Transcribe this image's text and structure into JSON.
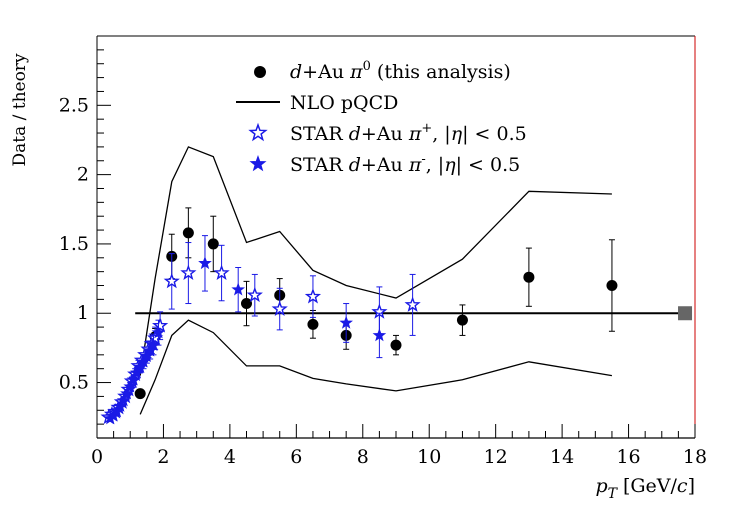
{
  "chart_data": {
    "type": "scatter",
    "title": "",
    "xlabel": "p_T [GeV/c]",
    "xlabel_main": "p",
    "xlabel_sub": "T",
    "xlabel_unit": "[GeV/",
    "xlabel_unit_var": "c",
    "xlabel_unit_close": "]",
    "ylabel": "Data / theory",
    "xlim": [
      0,
      18
    ],
    "ylim": [
      0.1,
      3.0
    ],
    "xticks": [
      "0",
      "2",
      "4",
      "6",
      "8",
      "10",
      "12",
      "14",
      "16",
      "18"
    ],
    "yticks": [
      "0.5",
      "1",
      "1.5",
      "2",
      "2.5"
    ],
    "legend": {
      "placement": "top-right",
      "entries": [
        {
          "marker": "circle",
          "label": "d+Au π0 (this analysis)",
          "parts": [
            "d",
            "+Au ",
            "π",
            "0",
            " (this analysis)"
          ]
        },
        {
          "marker": "line",
          "label": "NLO pQCD"
        },
        {
          "marker": "open-star",
          "label": "STAR d+Au π+, |η| < 0.5",
          "parts": [
            "STAR ",
            "d",
            "+Au ",
            "π",
            "+",
            ", |",
            "η",
            "| < 0.5"
          ]
        },
        {
          "marker": "filled-star",
          "label": "STAR d+Au π-, |η| < 0.5",
          "parts": [
            "STAR ",
            "d",
            "+Au ",
            "π",
            "-",
            ", |",
            "η",
            "| < 0.5"
          ]
        }
      ]
    },
    "reference_line": {
      "y": 1.0,
      "x_start": 1.15,
      "x_end": 17.7
    },
    "reference_box_color": "#666666",
    "series": [
      {
        "name": "d+Au pi0 (this analysis)",
        "marker": "circle",
        "color": "#000000",
        "points": [
          {
            "x": 1.3,
            "y": 0.42,
            "err": 0.02
          },
          {
            "x": 1.75,
            "y": 0.83,
            "err": 0.06
          },
          {
            "x": 2.25,
            "y": 1.41,
            "err": 0.16
          },
          {
            "x": 2.75,
            "y": 1.58,
            "err": 0.18
          },
          {
            "x": 3.5,
            "y": 1.5,
            "err": 0.2
          },
          {
            "x": 4.5,
            "y": 1.07,
            "err": 0.16
          },
          {
            "x": 5.5,
            "y": 1.13,
            "err": 0.12
          },
          {
            "x": 6.5,
            "y": 0.92,
            "err": 0.1
          },
          {
            "x": 7.5,
            "y": 0.84,
            "err": 0.1
          },
          {
            "x": 9.0,
            "y": 0.77,
            "err": 0.07
          },
          {
            "x": 11.0,
            "y": 0.95,
            "err": 0.11
          },
          {
            "x": 13.0,
            "y": 1.26,
            "err": 0.21
          },
          {
            "x": 15.5,
            "y": 1.2,
            "err": 0.33
          }
        ]
      },
      {
        "name": "STAR d+Au pi+",
        "marker": "open-star",
        "color": "#1a1ae6",
        "points": [
          {
            "x": 0.35,
            "y": 0.25,
            "err": 0.02
          },
          {
            "x": 0.45,
            "y": 0.27,
            "err": 0.02
          },
          {
            "x": 0.55,
            "y": 0.29,
            "err": 0.02
          },
          {
            "x": 0.65,
            "y": 0.32,
            "err": 0.02
          },
          {
            "x": 0.75,
            "y": 0.36,
            "err": 0.02
          },
          {
            "x": 0.85,
            "y": 0.4,
            "err": 0.03
          },
          {
            "x": 0.95,
            "y": 0.45,
            "err": 0.03
          },
          {
            "x": 1.05,
            "y": 0.51,
            "err": 0.03
          },
          {
            "x": 1.15,
            "y": 0.56,
            "err": 0.04
          },
          {
            "x": 1.25,
            "y": 0.62,
            "err": 0.04
          },
          {
            "x": 1.35,
            "y": 0.66,
            "err": 0.05
          },
          {
            "x": 1.45,
            "y": 0.7,
            "err": 0.05
          },
          {
            "x": 1.55,
            "y": 0.74,
            "err": 0.06
          },
          {
            "x": 1.65,
            "y": 0.78,
            "err": 0.07
          },
          {
            "x": 1.75,
            "y": 0.82,
            "err": 0.08
          },
          {
            "x": 1.9,
            "y": 0.91,
            "err": 0.1
          },
          {
            "x": 2.25,
            "y": 1.23,
            "err": 0.2
          },
          {
            "x": 2.75,
            "y": 1.29,
            "err": 0.22
          },
          {
            "x": 3.75,
            "y": 1.29,
            "err": 0.2
          },
          {
            "x": 4.75,
            "y": 1.13,
            "err": 0.15
          },
          {
            "x": 5.5,
            "y": 1.03,
            "err": 0.15
          },
          {
            "x": 6.5,
            "y": 1.12,
            "err": 0.15
          },
          {
            "x": 8.5,
            "y": 1.01,
            "err": 0.18
          },
          {
            "x": 9.5,
            "y": 1.06,
            "err": 0.22
          }
        ]
      },
      {
        "name": "STAR d+Au pi-",
        "marker": "filled-star",
        "color": "#1a1ae6",
        "points": [
          {
            "x": 0.4,
            "y": 0.24,
            "err": 0.02
          },
          {
            "x": 0.5,
            "y": 0.26,
            "err": 0.02
          },
          {
            "x": 0.6,
            "y": 0.29,
            "err": 0.02
          },
          {
            "x": 0.7,
            "y": 0.33,
            "err": 0.02
          },
          {
            "x": 0.8,
            "y": 0.37,
            "err": 0.02
          },
          {
            "x": 0.9,
            "y": 0.42,
            "err": 0.03
          },
          {
            "x": 1.0,
            "y": 0.47,
            "err": 0.03
          },
          {
            "x": 1.1,
            "y": 0.52,
            "err": 0.03
          },
          {
            "x": 1.2,
            "y": 0.57,
            "err": 0.04
          },
          {
            "x": 1.3,
            "y": 0.61,
            "err": 0.04
          },
          {
            "x": 1.4,
            "y": 0.65,
            "err": 0.05
          },
          {
            "x": 1.5,
            "y": 0.69,
            "err": 0.05
          },
          {
            "x": 1.6,
            "y": 0.73,
            "err": 0.06
          },
          {
            "x": 1.7,
            "y": 0.77,
            "err": 0.07
          },
          {
            "x": 1.85,
            "y": 0.86,
            "err": 0.09
          },
          {
            "x": 3.25,
            "y": 1.36,
            "err": 0.2
          },
          {
            "x": 4.25,
            "y": 1.17,
            "err": 0.16
          },
          {
            "x": 7.5,
            "y": 0.93,
            "err": 0.14
          },
          {
            "x": 8.5,
            "y": 0.84,
            "err": 0.16
          }
        ]
      }
    ],
    "bands": [
      {
        "name": "NLO pQCD upper",
        "points": [
          [
            1.3,
            0.55
          ],
          [
            1.75,
            1.25
          ],
          [
            2.25,
            1.95
          ],
          [
            2.75,
            2.2
          ],
          [
            3.5,
            2.13
          ],
          [
            4.5,
            1.51
          ],
          [
            5.5,
            1.59
          ],
          [
            6.5,
            1.31
          ],
          [
            7.5,
            1.2
          ],
          [
            9.0,
            1.11
          ],
          [
            11.0,
            1.39
          ],
          [
            13.0,
            1.88
          ],
          [
            15.5,
            1.86
          ]
        ]
      },
      {
        "name": "NLO pQCD lower",
        "points": [
          [
            1.3,
            0.27
          ],
          [
            1.75,
            0.52
          ],
          [
            2.25,
            0.84
          ],
          [
            2.75,
            0.95
          ],
          [
            3.5,
            0.86
          ],
          [
            4.5,
            0.62
          ],
          [
            5.5,
            0.62
          ],
          [
            6.5,
            0.53
          ],
          [
            7.5,
            0.49
          ],
          [
            9.0,
            0.44
          ],
          [
            11.0,
            0.52
          ],
          [
            13.0,
            0.65
          ],
          [
            15.5,
            0.55
          ]
        ]
      }
    ]
  }
}
